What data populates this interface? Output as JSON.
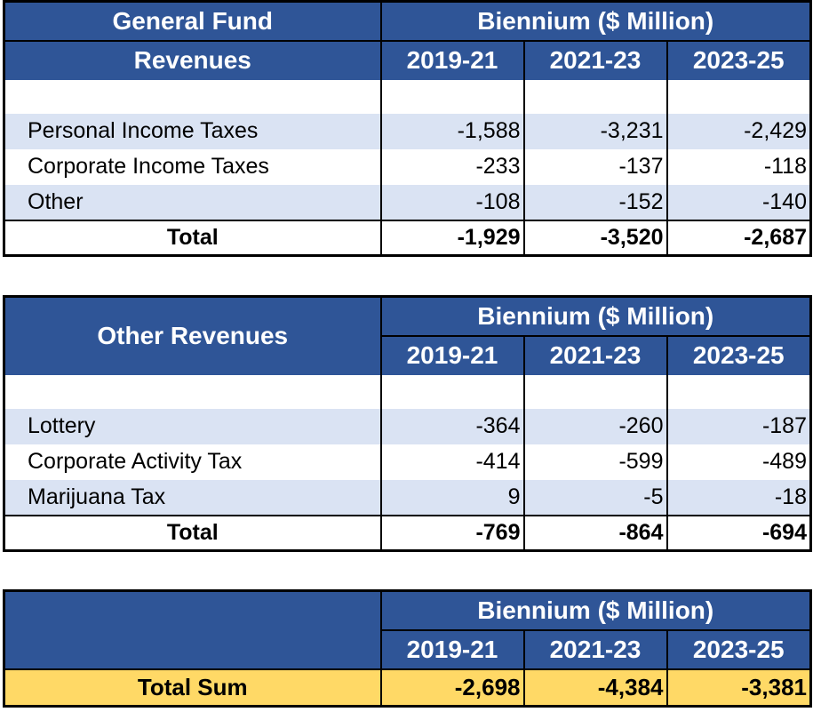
{
  "tables": [
    {
      "title_line1": "General Fund",
      "title_line2": "Revenues",
      "biennium_header": "Biennium ($ Million)",
      "years": [
        "2019-21",
        "2021-23",
        "2023-25"
      ],
      "rows": [
        {
          "label": "Personal Income Taxes",
          "values": [
            "-1,588",
            "-3,231",
            "-2,429"
          ]
        },
        {
          "label": "Corporate Income Taxes",
          "values": [
            "-233",
            "-137",
            "-118"
          ]
        },
        {
          "label": "Other",
          "values": [
            "-108",
            "-152",
            "-140"
          ]
        }
      ],
      "total": {
        "label": "Total",
        "values": [
          "-1,929",
          "-3,520",
          "-2,687"
        ]
      }
    },
    {
      "title": "Other Revenues",
      "biennium_header": "Biennium ($ Million)",
      "years": [
        "2019-21",
        "2021-23",
        "2023-25"
      ],
      "rows": [
        {
          "label": "Lottery",
          "values": [
            "-364",
            "-260",
            "-187"
          ]
        },
        {
          "label": "Corporate Activity Tax",
          "values": [
            "-414",
            "-599",
            "-489"
          ]
        },
        {
          "label": "Marijuana Tax",
          "values": [
            "9",
            "-5",
            "-18"
          ]
        }
      ],
      "total": {
        "label": "Total",
        "values": [
          "-769",
          "-864",
          "-694"
        ]
      }
    },
    {
      "title": "",
      "biennium_header": "Biennium ($ Million)",
      "years": [
        "2019-21",
        "2021-23",
        "2023-25"
      ],
      "total_sum": {
        "label": "Total Sum",
        "values": [
          "-2,698",
          "-4,384",
          "-3,381"
        ]
      }
    }
  ],
  "colors": {
    "header": "#2f5597",
    "band": "#dae3f3",
    "total_sum": "#ffd966"
  }
}
